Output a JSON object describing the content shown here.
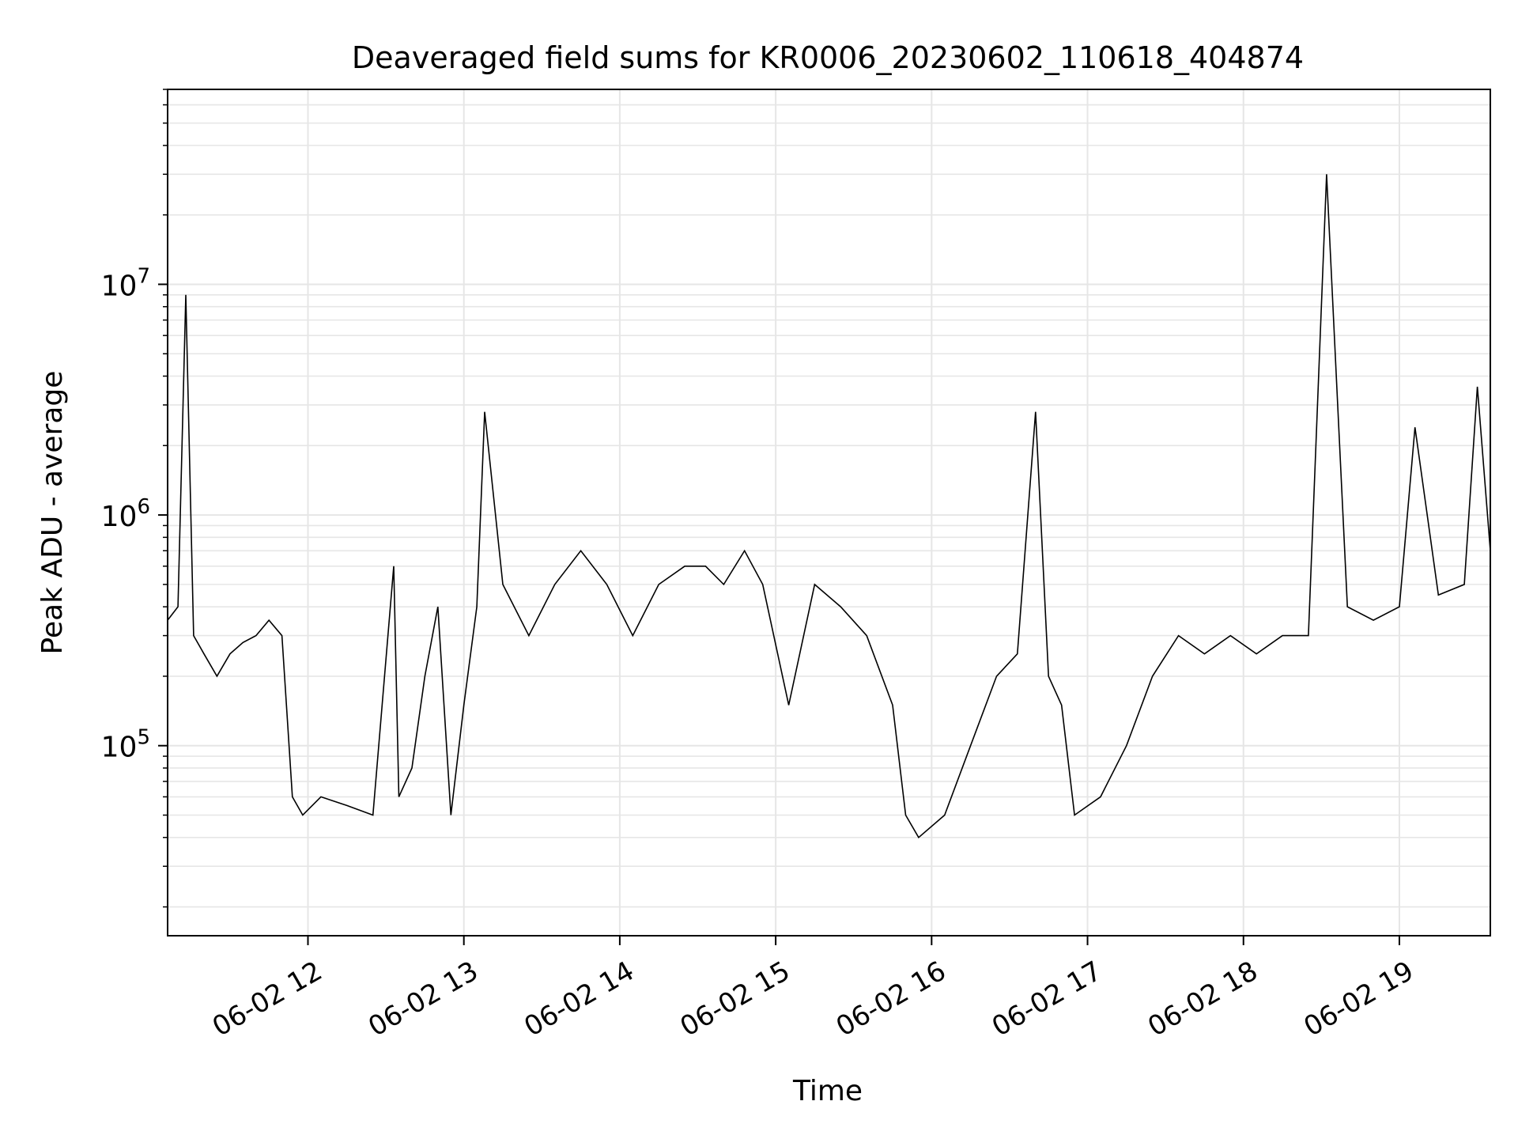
{
  "chart_data": {
    "type": "line",
    "title": "Deaveraged field sums for KR0006_20230602_110618_404874",
    "xlabel": "Time",
    "ylabel": "Peak ADU - average",
    "yscale": "log",
    "ylim": [
      15000,
      70000000
    ],
    "xlim": [
      "2023-06-02 11:06",
      "2023-06-02 19:35"
    ],
    "grid": true,
    "line_color": "#000000",
    "grid_color": "#e6e6e6",
    "xticks": [
      "2023-06-02 12:00",
      "2023-06-02 13:00",
      "2023-06-02 14:00",
      "2023-06-02 15:00",
      "2023-06-02 16:00",
      "2023-06-02 17:00",
      "2023-06-02 18:00",
      "2023-06-02 19:00"
    ],
    "xtick_labels": [
      "06-02 12",
      "06-02 13",
      "06-02 14",
      "06-02 15",
      "06-02 16",
      "06-02 17",
      "06-02 18",
      "06-02 19"
    ],
    "yticks": [
      100000,
      1000000,
      10000000
    ],
    "ytick_labels": [
      {
        "base": "10",
        "exp": "5"
      },
      {
        "base": "10",
        "exp": "6"
      },
      {
        "base": "10",
        "exp": "7"
      }
    ],
    "series": [
      {
        "x": [
          "2023-06-02 11:06",
          "2023-06-02 11:10",
          "2023-06-02 11:13",
          "2023-06-02 11:16",
          "2023-06-02 11:20",
          "2023-06-02 11:25",
          "2023-06-02 11:30",
          "2023-06-02 11:35",
          "2023-06-02 11:40",
          "2023-06-02 11:45",
          "2023-06-02 11:50",
          "2023-06-02 11:54",
          "2023-06-02 11:58",
          "2023-06-02 12:05",
          "2023-06-02 12:15",
          "2023-06-02 12:25",
          "2023-06-02 12:33",
          "2023-06-02 12:35",
          "2023-06-02 12:40",
          "2023-06-02 12:45",
          "2023-06-02 12:50",
          "2023-06-02 12:55",
          "2023-06-02 13:00",
          "2023-06-02 13:05",
          "2023-06-02 13:08",
          "2023-06-02 13:15",
          "2023-06-02 13:25",
          "2023-06-02 13:35",
          "2023-06-02 13:45",
          "2023-06-02 13:55",
          "2023-06-02 14:05",
          "2023-06-02 14:15",
          "2023-06-02 14:25",
          "2023-06-02 14:33",
          "2023-06-02 14:40",
          "2023-06-02 14:48",
          "2023-06-02 14:55",
          "2023-06-02 15:05",
          "2023-06-02 15:15",
          "2023-06-02 15:25",
          "2023-06-02 15:35",
          "2023-06-02 15:45",
          "2023-06-02 15:50",
          "2023-06-02 15:55",
          "2023-06-02 16:05",
          "2023-06-02 16:15",
          "2023-06-02 16:25",
          "2023-06-02 16:33",
          "2023-06-02 16:40",
          "2023-06-02 16:45",
          "2023-06-02 16:50",
          "2023-06-02 16:55",
          "2023-06-02 17:05",
          "2023-06-02 17:15",
          "2023-06-02 17:25",
          "2023-06-02 17:35",
          "2023-06-02 17:45",
          "2023-06-02 17:55",
          "2023-06-02 18:05",
          "2023-06-02 18:15",
          "2023-06-02 18:25",
          "2023-06-02 18:32",
          "2023-06-02 18:40",
          "2023-06-02 18:50",
          "2023-06-02 19:00",
          "2023-06-02 19:06",
          "2023-06-02 19:15",
          "2023-06-02 19:25",
          "2023-06-02 19:30",
          "2023-06-02 19:35"
        ],
        "y": [
          350000,
          400000,
          9000000,
          300000,
          250000,
          200000,
          250000,
          280000,
          300000,
          350000,
          300000,
          60000,
          50000,
          60000,
          55000,
          50000,
          600000,
          60000,
          80000,
          200000,
          400000,
          50000,
          150000,
          400000,
          2800000,
          500000,
          300000,
          500000,
          700000,
          500000,
          300000,
          500000,
          600000,
          600000,
          500000,
          700000,
          500000,
          150000,
          500000,
          400000,
          300000,
          150000,
          50000,
          40000,
          50000,
          100000,
          200000,
          250000,
          2800000,
          200000,
          150000,
          50000,
          60000,
          100000,
          200000,
          300000,
          250000,
          300000,
          250000,
          300000,
          300000,
          30000000,
          400000,
          350000,
          400000,
          2400000,
          450000,
          500000,
          3600000,
          700000
        ]
      }
    ]
  }
}
